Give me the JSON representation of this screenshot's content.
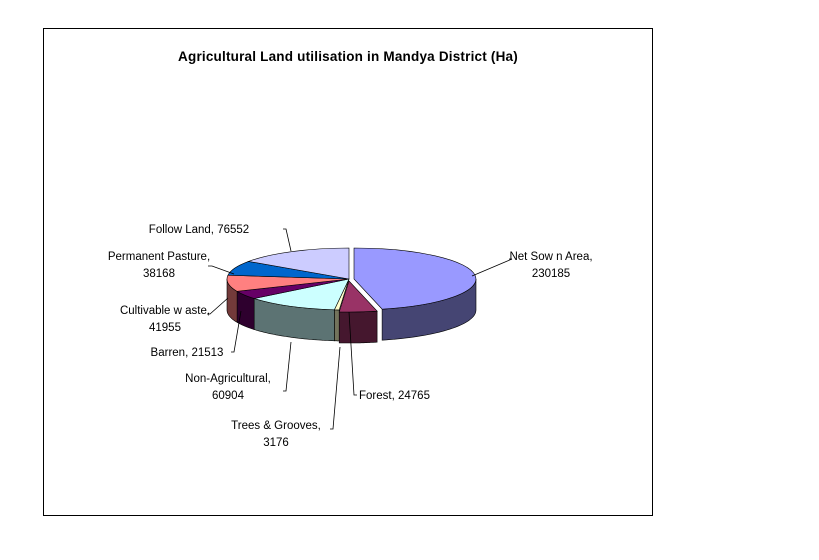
{
  "chart_data": {
    "type": "pie",
    "style": "3d-exploded",
    "title": "Agricultural Land utilisation in Mandya District (Ha)",
    "legend": "none",
    "slices": [
      {
        "name": "Net Sow n Area",
        "value": 230185,
        "color": "#9999FF",
        "label_lines": [
          "Net Sow n Area,",
          "230185"
        ]
      },
      {
        "name": "Forest",
        "value": 24765,
        "color": "#993366",
        "label_lines": [
          "Forest, 24765"
        ]
      },
      {
        "name": "Trees & Grooves",
        "value": 3176,
        "color": "#FFFFCC",
        "label_lines": [
          "Trees & Grooves,",
          "3176"
        ]
      },
      {
        "name": "Non-Agricultural",
        "value": 60904,
        "color": "#CCFFFF",
        "label_lines": [
          "Non-Agricultural,",
          "60904"
        ]
      },
      {
        "name": "Barren",
        "value": 21513,
        "color": "#660066",
        "label_lines": [
          "Barren, 21513"
        ]
      },
      {
        "name": "Cultivable w aste",
        "value": 41955,
        "color": "#FF8080",
        "label_lines": [
          "Cultivable w aste,",
          "41955"
        ]
      },
      {
        "name": "Permanent Pasture",
        "value": 38168,
        "color": "#0066CC",
        "label_lines": [
          "Permanent Pasture,",
          "38168"
        ]
      },
      {
        "name": "Follow  Land",
        "value": 76552,
        "color": "#CCCCFF",
        "label_lines": [
          "Follow  Land, 76552"
        ]
      }
    ]
  }
}
